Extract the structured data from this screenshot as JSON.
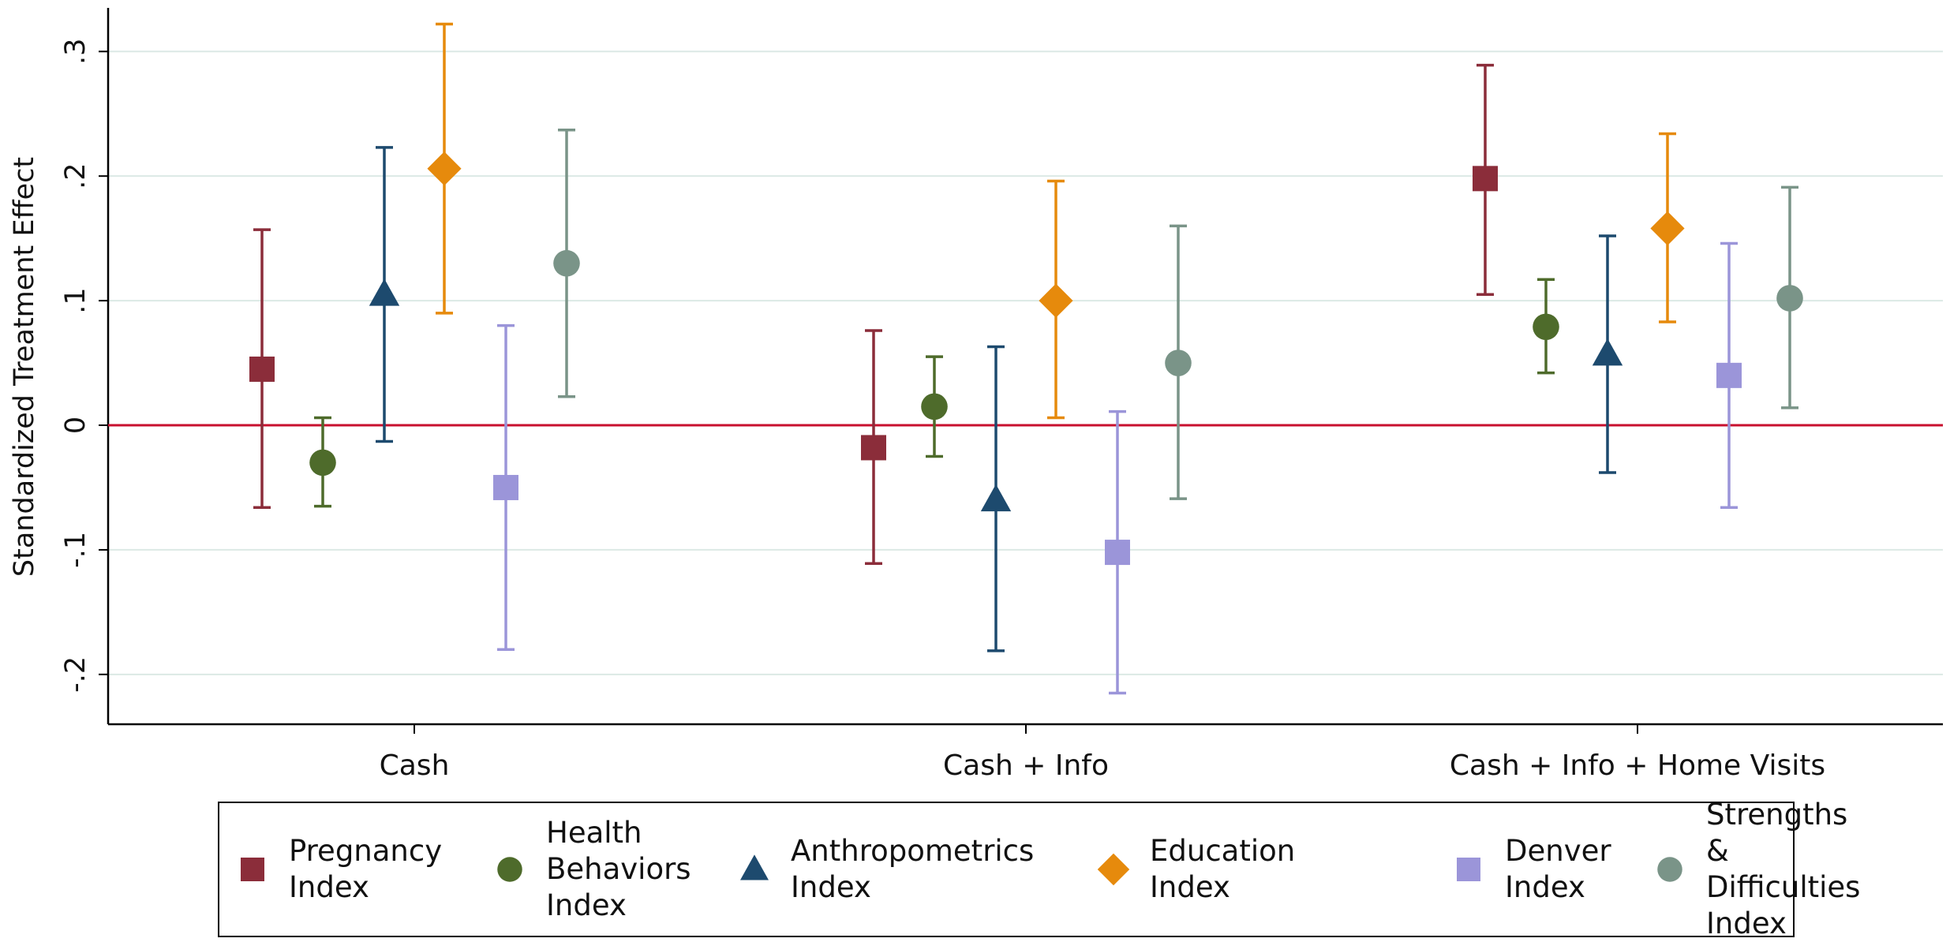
{
  "chart_data": {
    "type": "scatter",
    "subtype": "coefficient-plot-with-confidence-intervals",
    "title": "",
    "xlabel": "",
    "ylabel": "Standardized Treatment Effect",
    "ylim": [
      -0.24,
      0.335
    ],
    "yticks": [
      -0.2,
      -0.1,
      0,
      0.1,
      0.2,
      0.3
    ],
    "ytick_labels": [
      "-.2",
      "-.1",
      "0",
      ".1",
      ".2",
      ".3"
    ],
    "grid": true,
    "reference_line": {
      "y": 0,
      "color": "#c8102e"
    },
    "categories": [
      "Cash",
      "Cash + Info",
      "Cash + Info + Home Visits"
    ],
    "legend_position": "bottom",
    "series": [
      {
        "name": "Pregnancy Index",
        "legend_label": "Pregnancy\nIndex",
        "marker": "square",
        "color": "#8b2d3a",
        "points": [
          {
            "y": 0.045,
            "lo": -0.066,
            "hi": 0.157
          },
          {
            "y": -0.018,
            "lo": -0.111,
            "hi": 0.076
          },
          {
            "y": 0.198,
            "lo": 0.105,
            "hi": 0.289
          }
        ]
      },
      {
        "name": "Health Behaviors Index",
        "legend_label": "Health\nBehaviors\nIndex",
        "marker": "circle",
        "color": "#4e6b2b",
        "points": [
          {
            "y": -0.03,
            "lo": -0.065,
            "hi": 0.006
          },
          {
            "y": 0.015,
            "lo": -0.025,
            "hi": 0.055
          },
          {
            "y": 0.079,
            "lo": 0.042,
            "hi": 0.117
          }
        ]
      },
      {
        "name": "Anthropometrics Index",
        "legend_label": "Anthropometrics\nIndex",
        "marker": "triangle",
        "color": "#1d4a6e",
        "points": [
          {
            "y": 0.105,
            "lo": -0.013,
            "hi": 0.223
          },
          {
            "y": -0.06,
            "lo": -0.181,
            "hi": 0.063
          },
          {
            "y": 0.057,
            "lo": -0.038,
            "hi": 0.152
          }
        ]
      },
      {
        "name": "Education Index",
        "legend_label": "Education\nIndex",
        "marker": "diamond",
        "color": "#e68a0c",
        "points": [
          {
            "y": 0.206,
            "lo": 0.09,
            "hi": 0.322
          },
          {
            "y": 0.1,
            "lo": 0.006,
            "hi": 0.196
          },
          {
            "y": 0.158,
            "lo": 0.083,
            "hi": 0.234
          }
        ]
      },
      {
        "name": "Denver Index",
        "legend_label": "Denver\nIndex",
        "marker": "square",
        "color": "#9b95d9",
        "points": [
          {
            "y": -0.05,
            "lo": -0.18,
            "hi": 0.08
          },
          {
            "y": -0.102,
            "lo": -0.215,
            "hi": 0.011
          },
          {
            "y": 0.04,
            "lo": -0.066,
            "hi": 0.146
          }
        ]
      },
      {
        "name": "Strengths & Difficulties Index",
        "legend_label": "Strengths &\nDifficulties\nIndex",
        "marker": "circle",
        "color": "#7a9488",
        "points": [
          {
            "y": 0.13,
            "lo": 0.023,
            "hi": 0.237
          },
          {
            "y": 0.05,
            "lo": -0.059,
            "hi": 0.16
          },
          {
            "y": 0.102,
            "lo": 0.014,
            "hi": 0.191
          }
        ]
      }
    ]
  }
}
